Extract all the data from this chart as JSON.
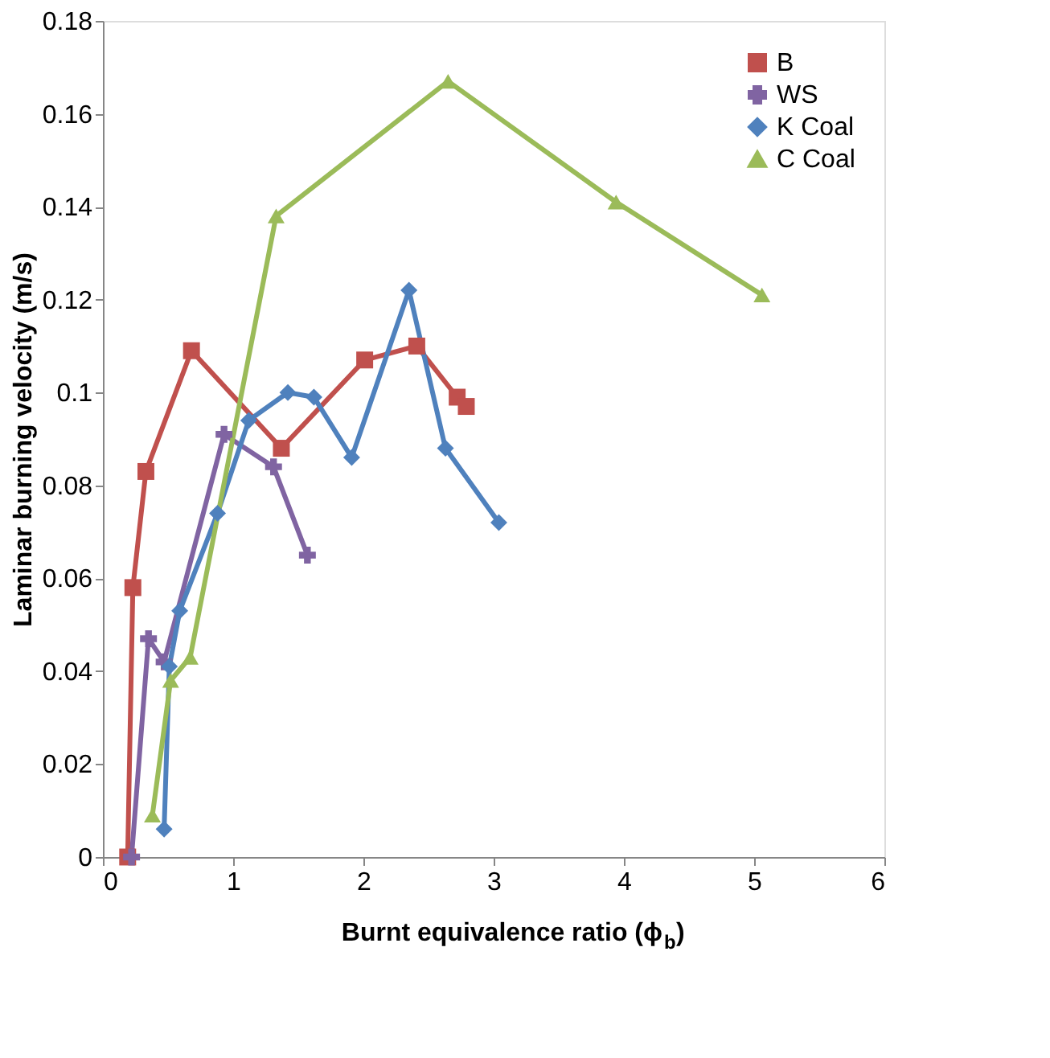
{
  "chart_data": {
    "type": "line",
    "xlabel": "Burnt equivalence ratio (ϕ$_{b}$)",
    "ylabel": "Laminar burning velocity (m/s)",
    "xlim": [
      0,
      6
    ],
    "xticks": [
      0,
      1,
      2,
      3,
      4,
      5,
      6
    ],
    "ylim": [
      0,
      0.18
    ],
    "yticks": [
      0,
      0.02,
      0.04,
      0.06,
      0.08,
      0.1,
      0.12,
      0.14,
      0.16,
      0.18
    ],
    "grid": false,
    "legend": "top right",
    "line_style": "solid",
    "series": [
      {
        "name": "B",
        "color": "#c0504d",
        "marker": "square",
        "x": [
          0.19,
          0.23,
          0.33,
          0.68,
          1.37,
          2.01,
          2.41,
          2.72,
          2.79
        ],
        "values": [
          0,
          0.058,
          0.083,
          0.109,
          0.088,
          0.107,
          0.11,
          0.099,
          0.097
        ]
      },
      {
        "name": "WS",
        "color": "#8064a2",
        "marker": "cross",
        "x": [
          0.22,
          0.35,
          0.47,
          0.93,
          1.31,
          1.57
        ],
        "values": [
          0,
          0.047,
          0.042,
          0.091,
          0.084,
          0.065
        ]
      },
      {
        "name": "K Coal",
        "color": "#4f81bd",
        "marker": "diamond",
        "x": [
          0.47,
          0.51,
          0.59,
          0.88,
          1.12,
          1.42,
          1.62,
          1.91,
          2.35,
          2.63,
          3.04
        ],
        "values": [
          0.006,
          0.041,
          0.053,
          0.074,
          0.094,
          0.1,
          0.099,
          0.086,
          0.122,
          0.088,
          0.072
        ]
      },
      {
        "name": "C Coal",
        "color": "#9bbb59",
        "marker": "triangle",
        "x": [
          0.38,
          0.52,
          0.67,
          1.33,
          2.65,
          3.94,
          5.06
        ],
        "values": [
          0.009,
          0.038,
          0.043,
          0.138,
          0.167,
          0.141,
          0.121
        ]
      }
    ]
  }
}
